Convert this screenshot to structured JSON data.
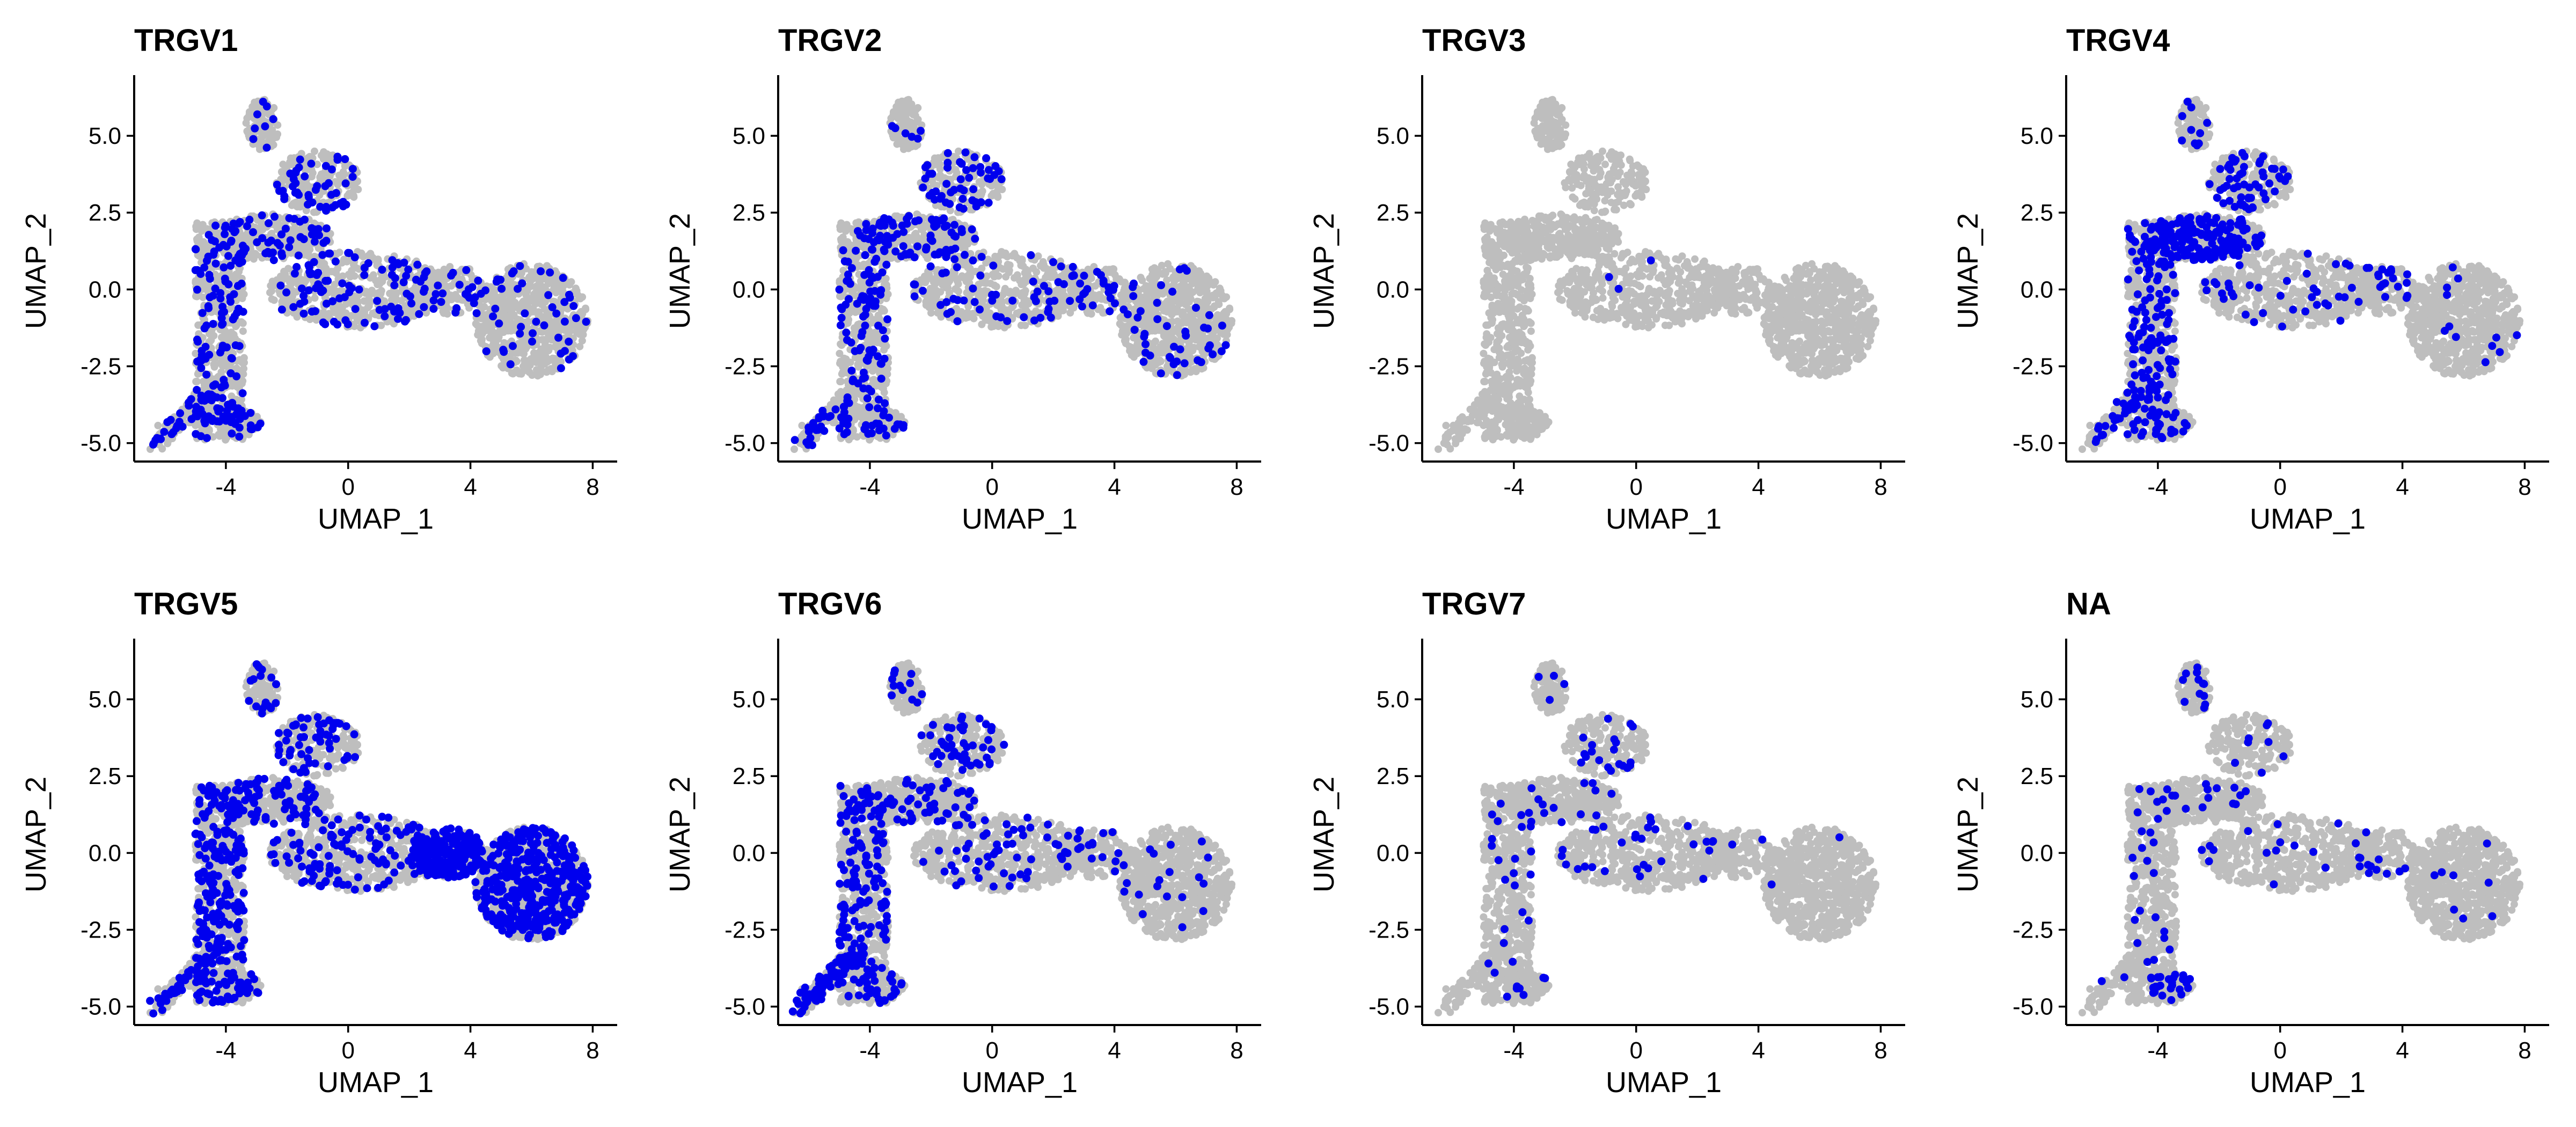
{
  "figure": {
    "background": "#ffffff"
  },
  "colors": {
    "background_cells": "#bebebe",
    "highlight_cells": "#0000ee"
  },
  "chart_data": [
    {
      "type": "scatter",
      "title": "TRGV1",
      "xlabel": "UMAP_1",
      "ylabel": "UMAP_2",
      "xlim": [
        -7,
        8.8
      ],
      "ylim": [
        -5.6,
        6.8
      ],
      "xticks": [
        -4,
        0,
        4,
        8
      ],
      "yticks": [
        -5.0,
        -2.5,
        0.0,
        2.5,
        5.0
      ],
      "xtick_labels": [
        "-4",
        "0",
        "4",
        "8"
      ],
      "ytick_labels": [
        "-5.0",
        "-2.5",
        "0.0",
        "2.5",
        "5.0"
      ],
      "grid": false,
      "legend": "none",
      "highlight_series": {
        "name": "TRGV1",
        "color": "#0000ee",
        "region_counts": [
          40,
          120,
          15,
          8,
          55,
          45,
          90,
          25,
          45
        ]
      }
    },
    {
      "type": "scatter",
      "title": "TRGV2",
      "xlabel": "UMAP_1",
      "ylabel": "UMAP_2",
      "xlim": [
        -7,
        8.8
      ],
      "ylim": [
        -5.6,
        6.8
      ],
      "xticks": [
        -4,
        0,
        4,
        8
      ],
      "yticks": [
        -5.0,
        -2.5,
        0.0,
        2.5,
        5.0
      ],
      "xtick_labels": [
        "-4",
        "0",
        "4",
        "8"
      ],
      "ytick_labels": [
        "-5.0",
        "-2.5",
        "0.0",
        "2.5",
        "5.0"
      ],
      "grid": false,
      "legend": "none",
      "highlight_series": {
        "name": "TRGV2",
        "color": "#0000ee",
        "region_counts": [
          30,
          110,
          12,
          6,
          70,
          50,
          55,
          20,
          45
        ]
      }
    },
    {
      "type": "scatter",
      "title": "TRGV3",
      "xlabel": "UMAP_1",
      "ylabel": "UMAP_2",
      "xlim": [
        -7,
        8.8
      ],
      "ylim": [
        -5.6,
        6.8
      ],
      "xticks": [
        -4,
        0,
        4,
        8
      ],
      "yticks": [
        -5.0,
        -2.5,
        0.0,
        2.5,
        5.0
      ],
      "xtick_labels": [
        "-4",
        "0",
        "4",
        "8"
      ],
      "ytick_labels": [
        "-5.0",
        "-2.5",
        "0.0",
        "2.5",
        "5.0"
      ],
      "grid": false,
      "legend": "none",
      "highlight_series": {
        "name": "TRGV3",
        "color": "#0000ee",
        "region_counts": [
          0,
          0,
          0,
          0,
          0,
          0,
          3,
          0,
          0
        ]
      }
    },
    {
      "type": "scatter",
      "title": "TRGV4",
      "xlabel": "UMAP_1",
      "ylabel": "UMAP_2",
      "xlim": [
        -7,
        8.8
      ],
      "ylim": [
        -5.6,
        6.8
      ],
      "xticks": [
        -4,
        0,
        4,
        8
      ],
      "yticks": [
        -5.0,
        -2.5,
        0.0,
        2.5,
        5.0
      ],
      "xtick_labels": [
        "-4",
        "0",
        "4",
        "8"
      ],
      "ytick_labels": [
        "-5.0",
        "-2.5",
        "0.0",
        "2.5",
        "5.0"
      ],
      "grid": false,
      "legend": "none",
      "highlight_series": {
        "name": "TRGV4",
        "color": "#0000ee",
        "region_counts": [
          25,
          150,
          10,
          10,
          170,
          55,
          35,
          20,
          12
        ]
      }
    },
    {
      "type": "scatter",
      "title": "TRGV5",
      "xlabel": "UMAP_1",
      "ylabel": "UMAP_2",
      "xlim": [
        -7,
        8.8
      ],
      "ylim": [
        -5.6,
        6.8
      ],
      "xticks": [
        -4,
        0,
        4,
        8
      ],
      "yticks": [
        -5.0,
        -2.5,
        0.0,
        2.5,
        5.0
      ],
      "xtick_labels": [
        "-4",
        "0",
        "4",
        "8"
      ],
      "ytick_labels": [
        "-5.0",
        "-2.5",
        "0.0",
        "2.5",
        "5.0"
      ],
      "grid": false,
      "legend": "none",
      "highlight_series": {
        "name": "TRGV5",
        "color": "#0000ee",
        "region_counts": [
          45,
          220,
          15,
          18,
          80,
          55,
          120,
          200,
          380
        ]
      }
    },
    {
      "type": "scatter",
      "title": "TRGV6",
      "xlabel": "UMAP_1",
      "ylabel": "UMAP_2",
      "xlim": [
        -7,
        8.8
      ],
      "ylim": [
        -5.6,
        6.8
      ],
      "xticks": [
        -4,
        0,
        4,
        8
      ],
      "yticks": [
        -5.0,
        -2.5,
        0.0,
        2.5,
        5.0
      ],
      "xtick_labels": [
        "-4",
        "0",
        "4",
        "8"
      ],
      "ytick_labels": [
        "-5.0",
        "-2.5",
        "0.0",
        "2.5",
        "5.0"
      ],
      "grid": false,
      "legend": "none",
      "highlight_series": {
        "name": "TRGV6",
        "color": "#0000ee",
        "region_counts": [
          90,
          150,
          15,
          12,
          55,
          45,
          55,
          18,
          18
        ]
      }
    },
    {
      "type": "scatter",
      "title": "TRGV7",
      "xlabel": "UMAP_1",
      "ylabel": "UMAP_2",
      "xlim": [
        -7,
        8.8
      ],
      "ylim": [
        -5.6,
        6.8
      ],
      "xticks": [
        -4,
        0,
        4,
        8
      ],
      "yticks": [
        -5.0,
        -2.5,
        0.0,
        2.5,
        5.0
      ],
      "xtick_labels": [
        "-4",
        "0",
        "4",
        "8"
      ],
      "ytick_labels": [
        "-5.0",
        "-2.5",
        "0.0",
        "2.5",
        "5.0"
      ],
      "grid": false,
      "legend": "none",
      "highlight_series": {
        "name": "TRGV7",
        "color": "#0000ee",
        "region_counts": [
          0,
          28,
          3,
          4,
          12,
          20,
          30,
          2,
          2
        ]
      }
    },
    {
      "type": "scatter",
      "title": "NA",
      "xlabel": "UMAP_1",
      "ylabel": "UMAP_2",
      "xlim": [
        -7,
        8.8
      ],
      "ylim": [
        -5.6,
        6.8
      ],
      "xticks": [
        -4,
        0,
        4,
        8
      ],
      "yticks": [
        -5.0,
        -2.5,
        0.0,
        2.5,
        5.0
      ],
      "xtick_labels": [
        "-4",
        "0",
        "4",
        "8"
      ],
      "ytick_labels": [
        "-5.0",
        "-2.5",
        "0.0",
        "2.5",
        "5.0"
      ],
      "grid": false,
      "legend": "none",
      "highlight_series": {
        "name": "NA",
        "color": "#0000ee",
        "region_counts": [
          4,
          28,
          18,
          12,
          15,
          8,
          15,
          12,
          8
        ]
      }
    }
  ]
}
